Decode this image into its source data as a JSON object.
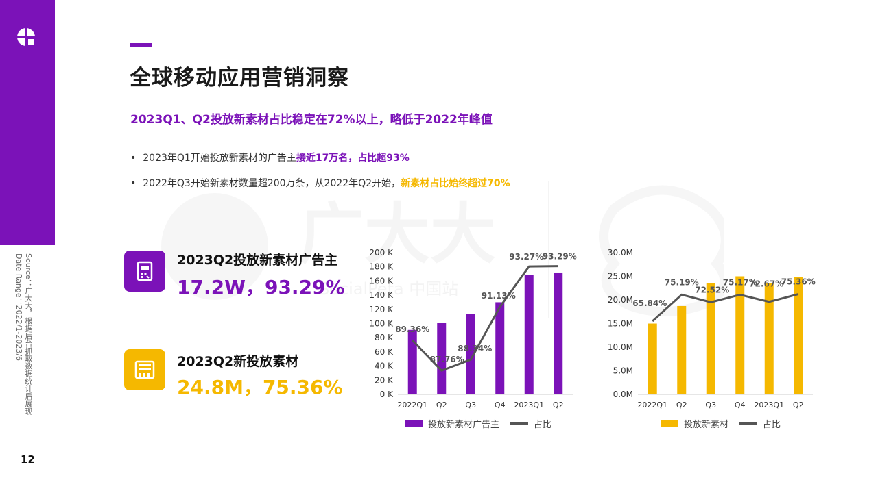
{
  "page": {
    "page_number": "12",
    "title": "全球移动应用营销洞察",
    "subtitle": "2023Q1、Q2投放新素材占比稳定在72%以上，略低于2022年峰值",
    "source_line1": "Source：广大大，根据后台抓取数据统计后展现",
    "source_line2": "Date Range：2022/1-2023/6"
  },
  "bullets": [
    {
      "text": "2023年Q1开始投放新素材的广告主",
      "highlight": "接近17万名，占比超93%"
    },
    {
      "text": "2022年Q3开始新素材数量超200万条，从2022年Q2开始，",
      "highlight": "新素材占比始终超过70%"
    }
  ],
  "kpis": [
    {
      "label": "2023Q2投放新素材广告主",
      "value": "17.2W，93.29%",
      "color": "#7b12b8",
      "icon": "advertiser-icon"
    },
    {
      "label": "2023Q2新投放素材",
      "value": "24.8M，75.36%",
      "color": "#f5b800",
      "icon": "creative-icon"
    }
  ],
  "colors": {
    "purple": "#7b12b8",
    "yellow": "#f5b800",
    "line": "#555555"
  },
  "chart_data": [
    {
      "type": "bar+line",
      "categories": [
        "2022Q1",
        "Q2",
        "Q3",
        "Q4",
        "2023Q1",
        "Q2"
      ],
      "series": [
        {
          "name": "投放新素材广告主",
          "type": "bar",
          "values": [
            91000,
            101000,
            114000,
            130000,
            169000,
            172000
          ],
          "color": "#7b12b8"
        },
        {
          "name": "占比",
          "type": "line",
          "values": [
            89.36,
            87.76,
            88.34,
            91.13,
            93.27,
            93.29
          ],
          "color": "#555555"
        }
      ],
      "line_labels": [
        "89.36%",
        "87.76%",
        "88.34%",
        "91.13%",
        "93.27%",
        "93.29%"
      ],
      "y_ticks": [
        "0 K",
        "20 K",
        "40 K",
        "60 K",
        "80 K",
        "100 K",
        "120 K",
        "140 K",
        "160 K",
        "180 K",
        "200 K"
      ],
      "ylim": [
        0,
        200000
      ],
      "line_range": [
        86.5,
        94.0
      ]
    },
    {
      "type": "bar+line",
      "categories": [
        "2022Q1",
        "Q2",
        "Q3",
        "Q4",
        "2023Q1",
        "Q2"
      ],
      "series": [
        {
          "name": "投放新素材",
          "type": "bar",
          "values": [
            15.0,
            18.7,
            23.5,
            25.0,
            23.5,
            24.8
          ],
          "color": "#f5b800"
        },
        {
          "name": "占比",
          "type": "line",
          "values": [
            65.84,
            75.19,
            72.52,
            75.17,
            72.67,
            75.36
          ],
          "color": "#555555"
        }
      ],
      "line_labels": [
        "65.84%",
        "75.19%",
        "72.52%",
        "75.17%",
        "72.67%",
        "75.36%"
      ],
      "y_ticks": [
        "0.0M",
        "5.0M",
        "10.0M",
        "15.0M",
        "20.0M",
        "25.0M",
        "30.0M"
      ],
      "ylim": [
        0,
        30
      ],
      "line_range": [
        40,
        90
      ]
    }
  ],
  "watermark": {
    "brand": "广大大",
    "tagline": "SocialPeta 中国站"
  }
}
